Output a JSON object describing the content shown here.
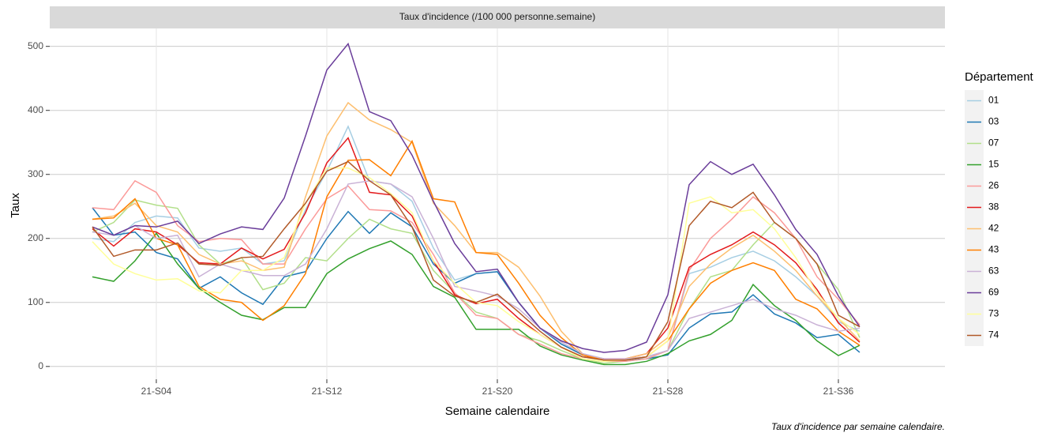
{
  "chart_data": {
    "type": "line",
    "title": "Taux d'incidence (/100 000 personne.semaine)",
    "x_label": "Semaine calendaire",
    "y_label": "Taux",
    "caption": "Taux d'incidence par semaine calendaire.",
    "legend_title": "Département",
    "legend_position": "right",
    "grid": true,
    "x": [
      1,
      2,
      3,
      4,
      5,
      6,
      7,
      8,
      9,
      10,
      11,
      12,
      13,
      14,
      15,
      16,
      17,
      18,
      19,
      20,
      21,
      22,
      23,
      24,
      25,
      26,
      27,
      28,
      29,
      30,
      31,
      32,
      33,
      34,
      35,
      36,
      37
    ],
    "xlim": [
      -1,
      41
    ],
    "xticks": [
      {
        "value": 4,
        "label": "21-S04"
      },
      {
        "value": 12,
        "label": "21-S12"
      },
      {
        "value": 20,
        "label": "21-S20"
      },
      {
        "value": 28,
        "label": "21-S28"
      },
      {
        "value": 36,
        "label": "21-S36"
      }
    ],
    "ylim": [
      -20,
      528
    ],
    "yticks": [
      0,
      100,
      200,
      300,
      400,
      500
    ],
    "series": [
      {
        "name": "01",
        "color": "#a6cee3",
        "values": [
          200,
          195,
          225,
          235,
          232,
          185,
          180,
          185,
          160,
          165,
          245,
          305,
          375,
          290,
          285,
          258,
          185,
          135,
          145,
          148,
          100,
          60,
          35,
          20,
          12,
          10,
          15,
          25,
          145,
          155,
          170,
          180,
          165,
          140,
          110,
          70,
          55
        ]
      },
      {
        "name": "03",
        "color": "#1f78b4",
        "values": [
          248,
          205,
          210,
          178,
          168,
          122,
          140,
          115,
          97,
          140,
          148,
          200,
          242,
          208,
          240,
          218,
          160,
          130,
          145,
          148,
          100,
          60,
          35,
          18,
          12,
          10,
          12,
          18,
          60,
          82,
          85,
          112,
          82,
          68,
          45,
          50,
          22
        ]
      },
      {
        "name": "07",
        "color": "#b2df8a",
        "values": [
          210,
          225,
          260,
          252,
          247,
          190,
          160,
          170,
          120,
          130,
          170,
          165,
          200,
          230,
          215,
          208,
          150,
          115,
          85,
          75,
          50,
          40,
          25,
          12,
          5,
          8,
          12,
          25,
          90,
          140,
          150,
          190,
          225,
          200,
          160,
          120,
          45
        ]
      },
      {
        "name": "15",
        "color": "#33a02c",
        "values": [
          140,
          133,
          165,
          208,
          160,
          122,
          100,
          80,
          73,
          92,
          92,
          145,
          168,
          184,
          196,
          175,
          125,
          108,
          58,
          58,
          58,
          32,
          18,
          10,
          3,
          3,
          8,
          20,
          40,
          50,
          72,
          128,
          95,
          72,
          40,
          17,
          33
        ]
      },
      {
        "name": "26",
        "color": "#fb9a99",
        "values": [
          248,
          245,
          290,
          272,
          220,
          195,
          200,
          198,
          160,
          160,
          215,
          262,
          282,
          245,
          243,
          225,
          175,
          115,
          80,
          75,
          50,
          35,
          20,
          12,
          8,
          8,
          12,
          25,
          150,
          200,
          230,
          265,
          240,
          200,
          140,
          105,
          65
        ]
      },
      {
        "name": "38",
        "color": "#e31a1c",
        "values": [
          215,
          188,
          215,
          210,
          190,
          162,
          160,
          185,
          168,
          183,
          240,
          318,
          357,
          272,
          268,
          235,
          165,
          112,
          98,
          105,
          75,
          50,
          30,
          15,
          12,
          12,
          20,
          60,
          155,
          175,
          190,
          210,
          190,
          162,
          120,
          68,
          38
        ]
      },
      {
        "name": "42",
        "color": "#fdbf6f",
        "values": [
          230,
          235,
          255,
          220,
          210,
          175,
          160,
          165,
          150,
          155,
          265,
          360,
          412,
          385,
          370,
          350,
          255,
          220,
          178,
          178,
          155,
          110,
          55,
          20,
          10,
          12,
          20,
          45,
          125,
          160,
          185,
          205,
          180,
          150,
          110,
          75,
          40
        ]
      },
      {
        "name": "43",
        "color": "#ff7f00",
        "values": [
          230,
          232,
          262,
          200,
          190,
          125,
          105,
          100,
          72,
          95,
          145,
          265,
          322,
          323,
          298,
          352,
          262,
          257,
          178,
          175,
          130,
          80,
          45,
          18,
          10,
          12,
          15,
          40,
          90,
          130,
          150,
          162,
          150,
          105,
          90,
          55,
          33
        ]
      },
      {
        "name": "63",
        "color": "#cab2d6",
        "values": [
          210,
          205,
          220,
          200,
          205,
          140,
          160,
          150,
          142,
          142,
          160,
          215,
          285,
          290,
          285,
          265,
          200,
          125,
          118,
          110,
          90,
          60,
          38,
          20,
          12,
          12,
          15,
          25,
          75,
          85,
          95,
          105,
          90,
          80,
          65,
          55,
          60
        ]
      },
      {
        "name": "69",
        "color": "#6a3d9a",
        "values": [
          218,
          205,
          220,
          218,
          227,
          192,
          207,
          218,
          214,
          263,
          360,
          463,
          504,
          398,
          384,
          330,
          258,
          192,
          148,
          152,
          100,
          60,
          40,
          28,
          22,
          25,
          38,
          112,
          284,
          320,
          300,
          316,
          268,
          214,
          175,
          110,
          62
        ]
      },
      {
        "name": "73",
        "color": "#ffff99",
        "values": [
          195,
          160,
          145,
          135,
          137,
          118,
          115,
          150,
          150,
          170,
          255,
          310,
          310,
          295,
          270,
          240,
          165,
          130,
          100,
          95,
          70,
          50,
          30,
          12,
          8,
          10,
          15,
          40,
          255,
          265,
          240,
          245,
          215,
          170,
          115,
          75,
          50
        ]
      },
      {
        "name": "74",
        "color": "#b15928",
        "values": [
          218,
          172,
          182,
          182,
          193,
          160,
          158,
          170,
          172,
          215,
          255,
          305,
          320,
          290,
          268,
          218,
          135,
          110,
          100,
          113,
          85,
          55,
          30,
          15,
          10,
          10,
          15,
          70,
          220,
          258,
          248,
          272,
          225,
          200,
          160,
          80,
          62
        ]
      }
    ]
  }
}
